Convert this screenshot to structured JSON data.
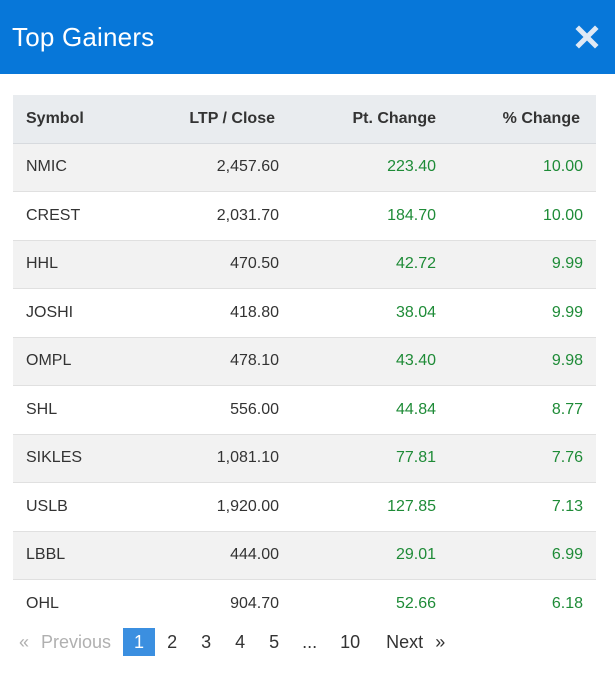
{
  "header": {
    "title": "Top Gainers",
    "close_icon": "close-icon"
  },
  "table": {
    "columns": [
      "Symbol",
      "LTP / Close",
      "Pt. Change",
      "% Change"
    ],
    "rows": [
      {
        "symbol": "NMIC",
        "ltp": "2,457.60",
        "pt_change": "223.40",
        "pct_change": "10.00"
      },
      {
        "symbol": "CREST",
        "ltp": "2,031.70",
        "pt_change": "184.70",
        "pct_change": "10.00"
      },
      {
        "symbol": "HHL",
        "ltp": "470.50",
        "pt_change": "42.72",
        "pct_change": "9.99"
      },
      {
        "symbol": "JOSHI",
        "ltp": "418.80",
        "pt_change": "38.04",
        "pct_change": "9.99"
      },
      {
        "symbol": "OMPL",
        "ltp": "478.10",
        "pt_change": "43.40",
        "pct_change": "9.98"
      },
      {
        "symbol": "SHL",
        "ltp": "556.00",
        "pt_change": "44.84",
        "pct_change": "8.77"
      },
      {
        "symbol": "SIKLES",
        "ltp": "1,081.10",
        "pt_change": "77.81",
        "pct_change": "7.76"
      },
      {
        "symbol": "USLB",
        "ltp": "1,920.00",
        "pt_change": "127.85",
        "pct_change": "7.13"
      },
      {
        "symbol": "LBBL",
        "ltp": "444.00",
        "pt_change": "29.01",
        "pct_change": "6.99"
      },
      {
        "symbol": "OHL",
        "ltp": "904.70",
        "pt_change": "52.66",
        "pct_change": "6.18"
      }
    ]
  },
  "pagination": {
    "prev_symbol": "«",
    "prev_label": "Previous",
    "pages": [
      "1",
      "2",
      "3",
      "4",
      "5"
    ],
    "active_page": "1",
    "ellipsis": "...",
    "last_page": "10",
    "next_label": "Next",
    "next_symbol": "»"
  },
  "colors": {
    "header_bg": "#0777d9",
    "positive": "#1e8b37",
    "active_page_bg": "#3b8fe0"
  }
}
